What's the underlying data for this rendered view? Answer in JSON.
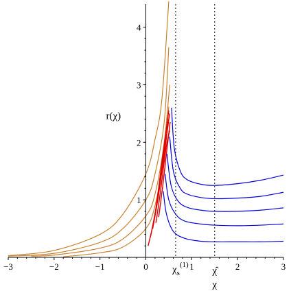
{
  "chart_data": {
    "type": "line",
    "xlim": [
      -3,
      3
    ],
    "ylim": [
      0,
      4.4
    ],
    "x_ticks": [
      -3,
      -2,
      -1,
      0,
      1,
      2,
      3
    ],
    "x_tick_labels": [
      "−3",
      "−2",
      "−1",
      "0",
      "1",
      "2",
      "3"
    ],
    "y_ticks": [
      1,
      2,
      3,
      4
    ],
    "y_tick_labels": [
      "1",
      "2",
      "3",
      "4"
    ],
    "ylabel": "r(χ)",
    "xlabel": "χ",
    "grid": false,
    "annotations": {
      "chi_s": {
        "base": "χ",
        "sub": "s",
        "sup": "(1)",
        "x": 0.65
      },
      "chi_hat": {
        "label": "χ̂",
        "x": 1.5
      }
    },
    "vertical_lines": [
      0.65,
      1.5
    ],
    "colors": {
      "orange": "#c8822f",
      "red": "#e00000",
      "blue": "#0000d8",
      "axis": "#000000"
    },
    "series": [
      {
        "group": "orange",
        "points": [
          [
            -3,
            0.03
          ],
          [
            -2,
            0.12
          ],
          [
            -1,
            0.4
          ],
          [
            -0.5,
            0.75
          ],
          [
            0,
            1.45
          ],
          [
            0.2,
            2.05
          ],
          [
            0.35,
            2.75
          ],
          [
            0.5,
            4.45
          ]
        ]
      },
      {
        "group": "orange",
        "points": [
          [
            -3,
            0.02
          ],
          [
            -2,
            0.07
          ],
          [
            -1,
            0.26
          ],
          [
            -0.5,
            0.5
          ],
          [
            0,
            1.0
          ],
          [
            0.2,
            1.45
          ],
          [
            0.4,
            2.35
          ],
          [
            0.5,
            3.65
          ]
        ]
      },
      {
        "group": "orange",
        "points": [
          [
            -2.5,
            0.02
          ],
          [
            -2,
            0.04
          ],
          [
            -1,
            0.16
          ],
          [
            -0.5,
            0.32
          ],
          [
            0,
            0.72
          ],
          [
            0.2,
            1.1
          ],
          [
            0.4,
            2.0
          ],
          [
            0.52,
            3.0
          ]
        ]
      },
      {
        "group": "orange",
        "points": [
          [
            -1.8,
            0.01
          ],
          [
            -1,
            0.08
          ],
          [
            -0.5,
            0.18
          ],
          [
            0,
            0.5
          ],
          [
            0.2,
            0.9
          ],
          [
            0.4,
            1.75
          ],
          [
            0.5,
            2.62
          ]
        ]
      },
      {
        "group": "red",
        "points": [
          [
            0.05,
            0.2
          ],
          [
            0.2,
            0.75
          ],
          [
            0.35,
            1.65
          ],
          [
            0.5,
            2.55
          ]
        ]
      },
      {
        "group": "red",
        "points": [
          [
            0.1,
            0.35
          ],
          [
            0.23,
            0.9
          ],
          [
            0.38,
            1.75
          ],
          [
            0.52,
            2.5
          ]
        ]
      },
      {
        "group": "red",
        "points": [
          [
            0.15,
            0.5
          ],
          [
            0.27,
            1.05
          ],
          [
            0.41,
            1.85
          ],
          [
            0.5,
            2.4
          ]
        ]
      },
      {
        "group": "red",
        "points": [
          [
            0.22,
            0.6
          ],
          [
            0.32,
            1.15
          ],
          [
            0.44,
            1.9
          ],
          [
            0.52,
            2.2
          ]
        ]
      },
      {
        "group": "red",
        "points": [
          [
            0.28,
            0.7
          ],
          [
            0.37,
            1.25
          ],
          [
            0.47,
            1.95
          ],
          [
            0.53,
            2.35
          ]
        ]
      },
      {
        "group": "blue",
        "points": [
          [
            0.56,
            2.6
          ],
          [
            0.62,
            1.9
          ],
          [
            0.75,
            1.5
          ],
          [
            0.9,
            1.35
          ],
          [
            1.2,
            1.27
          ],
          [
            1.5,
            1.25
          ],
          [
            2.0,
            1.28
          ],
          [
            2.5,
            1.34
          ],
          [
            3,
            1.43
          ]
        ]
      },
      {
        "group": "blue",
        "points": [
          [
            0.52,
            2.1
          ],
          [
            0.6,
            1.5
          ],
          [
            0.75,
            1.2
          ],
          [
            0.9,
            1.1
          ],
          [
            1.2,
            1.04
          ],
          [
            1.5,
            1.02
          ],
          [
            2.0,
            1.03
          ],
          [
            2.5,
            1.06
          ],
          [
            3,
            1.13
          ]
        ]
      },
      {
        "group": "blue",
        "points": [
          [
            0.46,
            1.8
          ],
          [
            0.55,
            1.25
          ],
          [
            0.7,
            0.98
          ],
          [
            0.9,
            0.87
          ],
          [
            1.2,
            0.82
          ],
          [
            1.5,
            0.8
          ],
          [
            2.0,
            0.8
          ],
          [
            2.5,
            0.82
          ],
          [
            3,
            0.86
          ]
        ]
      },
      {
        "group": "blue",
        "points": [
          [
            0.42,
            1.45
          ],
          [
            0.5,
            1.0
          ],
          [
            0.65,
            0.75
          ],
          [
            0.85,
            0.63
          ],
          [
            1.2,
            0.58
          ],
          [
            1.5,
            0.56
          ],
          [
            2.0,
            0.55
          ],
          [
            2.5,
            0.56
          ],
          [
            3,
            0.58
          ]
        ]
      },
      {
        "group": "blue",
        "points": [
          [
            0.38,
            1.15
          ],
          [
            0.45,
            0.75
          ],
          [
            0.6,
            0.45
          ],
          [
            0.85,
            0.33
          ],
          [
            1.2,
            0.28
          ],
          [
            1.5,
            0.27
          ],
          [
            2.0,
            0.27
          ],
          [
            2.5,
            0.27
          ],
          [
            3,
            0.28
          ]
        ]
      }
    ]
  }
}
